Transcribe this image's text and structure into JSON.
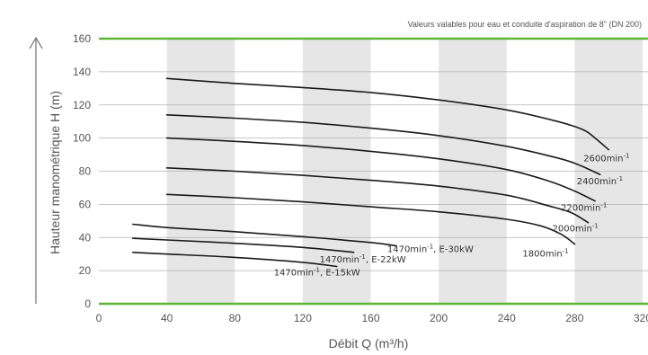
{
  "chart_data": {
    "type": "line",
    "note": "Valeurs valables pour eau et conduite d'aspiration de 8\" (DN 200)",
    "xlabel": "Débit Q (m³/h)",
    "ylabel": "Hauteur manométrique H (m)",
    "xlim": [
      0,
      320
    ],
    "ylim": [
      0,
      160
    ],
    "x_ticks": [
      "0",
      "40",
      "80",
      "120",
      "160",
      "200",
      "240",
      "280",
      "320"
    ],
    "y_ticks": [
      "0",
      "20",
      "40",
      "60",
      "80",
      "100",
      "120",
      "140",
      "160"
    ],
    "grid": "horizontal",
    "background_bands": [
      [
        40,
        80
      ],
      [
        120,
        160
      ],
      [
        200,
        240
      ],
      [
        280,
        320
      ]
    ],
    "colors": {
      "line": "#1a1a1a",
      "band": "#e6e6e6",
      "axis_accent": "#5db535",
      "grid": "#b3b3b3",
      "text": "#555555"
    },
    "series": [
      {
        "label_main": "2600min",
        "label_sup": "-1",
        "label_rest": "",
        "x": [
          40,
          80,
          120,
          160,
          200,
          240,
          270,
          285,
          292,
          300
        ],
        "y": [
          136,
          133,
          130.5,
          127.5,
          123,
          117,
          110,
          105,
          100,
          93
        ]
      },
      {
        "label_main": "2400min",
        "label_sup": "-1",
        "label_rest": "",
        "x": [
          40,
          80,
          120,
          160,
          200,
          240,
          270,
          282,
          295
        ],
        "y": [
          114,
          112,
          109.5,
          106,
          101.5,
          95,
          88,
          84,
          78
        ]
      },
      {
        "label_main": "2200min",
        "label_sup": "-1",
        "label_rest": "",
        "x": [
          40,
          80,
          120,
          160,
          200,
          240,
          265,
          280,
          292
        ],
        "y": [
          100,
          98,
          95.5,
          92,
          87.5,
          81,
          74,
          68,
          62
        ]
      },
      {
        "label_main": "2000min",
        "label_sup": "-1",
        "label_rest": "",
        "x": [
          40,
          80,
          120,
          160,
          200,
          240,
          265,
          278,
          288
        ],
        "y": [
          82,
          80,
          77.5,
          74.5,
          71,
          65.5,
          59,
          55,
          49
        ]
      },
      {
        "label_main": "1800min",
        "label_sup": "-1",
        "label_rest": "",
        "x": [
          40,
          80,
          120,
          160,
          200,
          240,
          260,
          272,
          280
        ],
        "y": [
          66,
          64,
          61.5,
          58.5,
          55.5,
          51,
          47,
          42,
          36
        ]
      },
      {
        "label_main": "1470min",
        "label_sup": "-1",
        "label_rest": ", E-30kW",
        "x": [
          20,
          40,
          80,
          120,
          160,
          175
        ],
        "y": [
          48,
          46,
          43.5,
          40.5,
          37,
          35
        ]
      },
      {
        "label_main": "1470min",
        "label_sup": "-1",
        "label_rest": ", E-22kW",
        "x": [
          20,
          40,
          80,
          120,
          150
        ],
        "y": [
          39.5,
          38.5,
          36.5,
          34,
          31
        ]
      },
      {
        "label_main": "1470min",
        "label_sup": "-1",
        "label_rest": ", E-15kW",
        "x": [
          20,
          40,
          80,
          120,
          140
        ],
        "y": [
          31,
          30,
          28,
          25,
          22.5
        ]
      }
    ]
  }
}
